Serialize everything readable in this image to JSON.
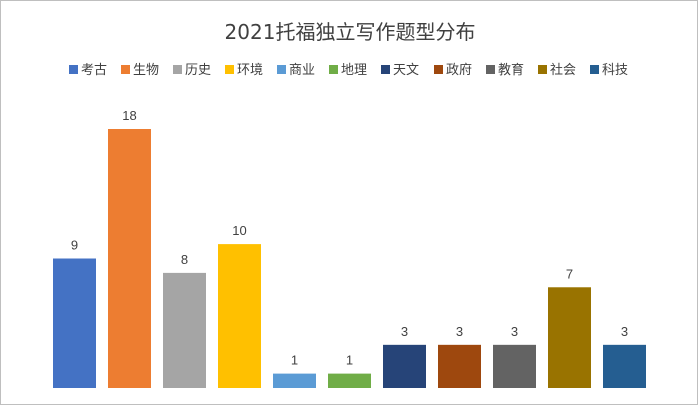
{
  "chart_data": {
    "type": "bar",
    "title": "2021托福独立写作题型分布",
    "categories": [
      "考古",
      "生物",
      "历史",
      "环境",
      "商业",
      "地理",
      "天文",
      "政府",
      "教育",
      "社会",
      "科技"
    ],
    "values": [
      9,
      18,
      8,
      10,
      1,
      1,
      3,
      3,
      3,
      7,
      3
    ],
    "colors": [
      "#4472C4",
      "#ED7D31",
      "#A5A5A5",
      "#FFC000",
      "#5B9BD5",
      "#70AD47",
      "#264478",
      "#9E480E",
      "#636363",
      "#997300",
      "#255E91"
    ],
    "xlabel": "",
    "ylabel": "",
    "ylim": [
      0,
      18
    ],
    "legend_position": "top",
    "grid": false,
    "show_axes": false,
    "data_labels": true
  }
}
